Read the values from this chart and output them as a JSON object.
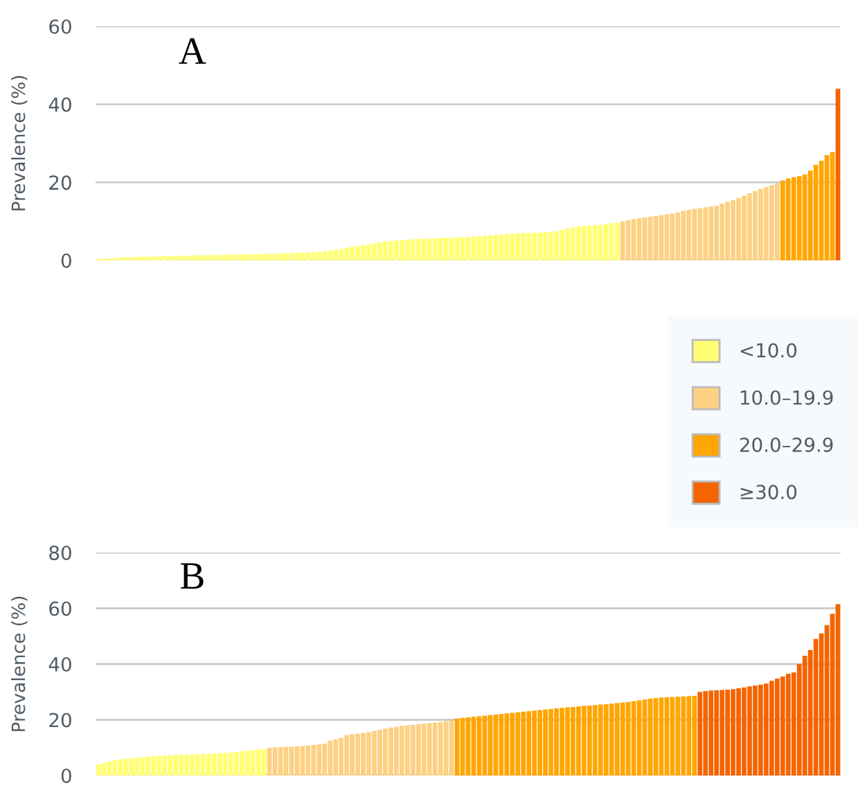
{
  "chart_data": [
    {
      "type": "bar",
      "title": "A",
      "ylabel": "Prevalence (%)",
      "ylim": [
        0,
        60
      ],
      "yticks": [
        0,
        20,
        40,
        60
      ],
      "grid": "y",
      "legend": "bottom right",
      "categories": [
        null,
        null,
        null,
        null,
        null,
        null,
        null,
        null,
        null,
        null,
        null,
        null,
        null,
        null,
        null,
        null,
        null,
        null,
        null,
        null,
        null,
        null,
        null,
        null,
        null,
        null,
        null,
        null,
        null,
        null,
        null,
        null,
        null,
        null,
        null,
        null,
        null,
        null,
        null,
        null,
        null,
        null,
        null,
        null,
        null,
        null,
        null,
        null,
        null,
        null,
        null,
        null,
        null,
        null,
        null,
        null,
        null,
        null,
        null,
        null,
        null,
        null,
        null,
        null,
        null,
        null,
        null,
        null,
        null,
        null,
        null,
        null,
        null,
        null,
        null,
        null,
        null,
        null,
        null,
        null,
        null,
        null,
        null,
        null,
        null,
        null,
        null,
        null,
        null,
        null,
        null,
        null,
        null,
        null,
        null,
        null,
        null,
        null,
        null,
        null,
        null,
        null,
        null,
        null,
        null,
        null,
        null,
        null,
        null,
        null,
        null,
        null,
        null,
        null,
        null,
        null,
        null,
        null,
        null,
        null,
        null,
        null,
        null,
        null,
        null,
        null,
        null,
        null,
        null,
        null,
        null,
        null,
        null,
        null,
        null
      ],
      "series": [
        {
          "name": "<10.0",
          "color": "#ffff73",
          "values": [
            0.3,
            0.4,
            0.5,
            0.6,
            0.7,
            0.8,
            0.8,
            0.9,
            0.9,
            1.0,
            1.0,
            1.0,
            1.1,
            1.1,
            1.1,
            1.2,
            1.2,
            1.2,
            1.3,
            1.3,
            1.3,
            1.4,
            1.4,
            1.4,
            1.5,
            1.5,
            1.5,
            1.6,
            1.6,
            1.6,
            1.7,
            1.7,
            1.7,
            1.8,
            1.8,
            1.9,
            1.9,
            2.0,
            2.0,
            2.1,
            2.2,
            2.3,
            2.5,
            2.7,
            2.9,
            3.2,
            3.5,
            3.7,
            3.9,
            4.1,
            4.3,
            4.6,
            4.9,
            5.0,
            5.1,
            5.2,
            5.3,
            5.4,
            5.5,
            5.5,
            5.6,
            5.7,
            5.7,
            5.8,
            5.8,
            5.9,
            5.9,
            6.0,
            6.1,
            6.2,
            6.3,
            6.4,
            6.5,
            6.6,
            6.7,
            6.8,
            6.9,
            7.0,
            7.0,
            7.1,
            7.1,
            7.2,
            7.3,
            7.5,
            7.8,
            8.2,
            8.5,
            8.7,
            8.8,
            8.9,
            9.0,
            9.1,
            9.3,
            9.5,
            9.7,
            null,
            null,
            null,
            null,
            null,
            null,
            null,
            null,
            null,
            null,
            null,
            null,
            null,
            null,
            null,
            null,
            null,
            null,
            null,
            null,
            null,
            null,
            null,
            null,
            null,
            null,
            null,
            null,
            null,
            null,
            null,
            null,
            null,
            null,
            null,
            null,
            null,
            null,
            null,
            null
          ]
        },
        {
          "name": "10.0–19.9",
          "color": "#fdd082",
          "values": [
            null,
            null,
            null,
            null,
            null,
            null,
            null,
            null,
            null,
            null,
            null,
            null,
            null,
            null,
            null,
            null,
            null,
            null,
            null,
            null,
            null,
            null,
            null,
            null,
            null,
            null,
            null,
            null,
            null,
            null,
            null,
            null,
            null,
            null,
            null,
            null,
            null,
            null,
            null,
            null,
            null,
            null,
            null,
            null,
            null,
            null,
            null,
            null,
            null,
            null,
            null,
            null,
            null,
            null,
            null,
            null,
            null,
            null,
            null,
            null,
            null,
            null,
            null,
            null,
            null,
            null,
            null,
            null,
            null,
            null,
            null,
            null,
            null,
            null,
            null,
            null,
            null,
            null,
            null,
            null,
            null,
            null,
            null,
            null,
            null,
            null,
            null,
            null,
            null,
            null,
            null,
            null,
            null,
            null,
            null,
            10.0,
            10.3,
            10.6,
            10.8,
            11.0,
            11.2,
            11.4,
            11.6,
            11.8,
            12.0,
            12.3,
            12.7,
            13.0,
            13.2,
            13.4,
            13.6,
            13.8,
            14.0,
            14.5,
            15.0,
            15.5,
            16.0,
            16.6,
            17.2,
            17.8,
            18.3,
            18.8,
            19.3,
            19.7,
            null,
            null,
            null,
            null,
            null,
            null,
            null,
            null,
            null,
            null,
            null
          ]
        },
        {
          "name": "20.0–29.9",
          "color": "#ffa600",
          "values": [
            null,
            null,
            null,
            null,
            null,
            null,
            null,
            null,
            null,
            null,
            null,
            null,
            null,
            null,
            null,
            null,
            null,
            null,
            null,
            null,
            null,
            null,
            null,
            null,
            null,
            null,
            null,
            null,
            null,
            null,
            null,
            null,
            null,
            null,
            null,
            null,
            null,
            null,
            null,
            null,
            null,
            null,
            null,
            null,
            null,
            null,
            null,
            null,
            null,
            null,
            null,
            null,
            null,
            null,
            null,
            null,
            null,
            null,
            null,
            null,
            null,
            null,
            null,
            null,
            null,
            null,
            null,
            null,
            null,
            null,
            null,
            null,
            null,
            null,
            null,
            null,
            null,
            null,
            null,
            null,
            null,
            null,
            null,
            null,
            null,
            null,
            null,
            null,
            null,
            null,
            null,
            null,
            null,
            null,
            null,
            null,
            null,
            null,
            null,
            null,
            null,
            null,
            null,
            null,
            null,
            null,
            null,
            null,
            null,
            null,
            null,
            null,
            null,
            null,
            null,
            null,
            null,
            null,
            null,
            null,
            null,
            null,
            null,
            null,
            20.5,
            21.0,
            21.3,
            21.6,
            22.0,
            23.0,
            24.5,
            25.5,
            27.0,
            27.8,
            null
          ]
        },
        {
          "name": "≥30.0",
          "color": "#f46502",
          "values": [
            null,
            null,
            null,
            null,
            null,
            null,
            null,
            null,
            null,
            null,
            null,
            null,
            null,
            null,
            null,
            null,
            null,
            null,
            null,
            null,
            null,
            null,
            null,
            null,
            null,
            null,
            null,
            null,
            null,
            null,
            null,
            null,
            null,
            null,
            null,
            null,
            null,
            null,
            null,
            null,
            null,
            null,
            null,
            null,
            null,
            null,
            null,
            null,
            null,
            null,
            null,
            null,
            null,
            null,
            null,
            null,
            null,
            null,
            null,
            null,
            null,
            null,
            null,
            null,
            null,
            null,
            null,
            null,
            null,
            null,
            null,
            null,
            null,
            null,
            null,
            null,
            null,
            null,
            null,
            null,
            null,
            null,
            null,
            null,
            null,
            null,
            null,
            null,
            null,
            null,
            null,
            null,
            null,
            null,
            null,
            null,
            null,
            null,
            null,
            null,
            null,
            null,
            null,
            null,
            null,
            null,
            null,
            null,
            null,
            null,
            null,
            null,
            null,
            null,
            null,
            null,
            null,
            null,
            null,
            null,
            null,
            null,
            null,
            null,
            null,
            null,
            null,
            null,
            null,
            null,
            null,
            null,
            null,
            null,
            44.0
          ]
        }
      ]
    },
    {
      "type": "bar",
      "title": "B",
      "ylabel": "Prevalence (%)",
      "ylim": [
        0,
        80
      ],
      "yticks": [
        0,
        20,
        40,
        60,
        80
      ],
      "grid": "y",
      "categories": [
        null,
        null,
        null,
        null,
        null,
        null,
        null,
        null,
        null,
        null,
        null,
        null,
        null,
        null,
        null,
        null,
        null,
        null,
        null,
        null,
        null,
        null,
        null,
        null,
        null,
        null,
        null,
        null,
        null,
        null,
        null,
        null,
        null,
        null,
        null,
        null,
        null,
        null,
        null,
        null,
        null,
        null,
        null,
        null,
        null,
        null,
        null,
        null,
        null,
        null,
        null,
        null,
        null,
        null,
        null,
        null,
        null,
        null,
        null,
        null,
        null,
        null,
        null,
        null,
        null,
        null,
        null,
        null,
        null,
        null,
        null,
        null,
        null,
        null,
        null,
        null,
        null,
        null,
        null,
        null,
        null,
        null,
        null,
        null,
        null,
        null,
        null,
        null,
        null,
        null,
        null,
        null,
        null,
        null,
        null,
        null,
        null,
        null,
        null,
        null,
        null,
        null,
        null,
        null,
        null,
        null,
        null,
        null,
        null,
        null,
        null,
        null,
        null,
        null,
        null,
        null,
        null,
        null,
        null,
        null,
        null,
        null,
        null,
        null,
        null,
        null,
        null,
        null,
        null,
        null,
        null,
        null,
        null,
        null,
        null
      ],
      "series": [
        {
          "color": "#ffff73",
          "values": [
            4.0,
            4.5,
            5.0,
            5.5,
            5.8,
            6.0,
            6.2,
            6.4,
            6.6,
            6.8,
            7.0,
            7.1,
            7.2,
            7.3,
            7.4,
            7.5,
            7.5,
            7.6,
            7.6,
            7.7,
            7.8,
            7.9,
            8.0,
            8.1,
            8.3,
            8.5,
            8.7,
            8.9,
            9.1,
            9.3,
            9.6,
            null,
            null,
            null,
            null,
            null,
            null,
            null,
            null,
            null,
            null,
            null,
            null,
            null,
            null,
            null,
            null,
            null,
            null,
            null,
            null,
            null,
            null,
            null,
            null,
            null,
            null,
            null,
            null,
            null,
            null,
            null,
            null,
            null,
            null,
            null,
            null,
            null,
            null,
            null,
            null,
            null,
            null,
            null,
            null,
            null,
            null,
            null,
            null,
            null,
            null,
            null,
            null,
            null,
            null,
            null,
            null,
            null,
            null,
            null,
            null,
            null,
            null,
            null,
            null,
            null,
            null,
            null,
            null,
            null,
            null,
            null,
            null,
            null,
            null,
            null,
            null,
            null,
            null,
            null,
            null,
            null,
            null,
            null,
            null,
            null,
            null,
            null,
            null,
            null,
            null,
            null,
            null,
            null,
            null,
            null,
            null,
            null,
            null,
            null,
            null,
            null,
            null,
            null,
            null
          ]
        },
        {
          "color": "#fdd082",
          "values": [
            null,
            null,
            null,
            null,
            null,
            null,
            null,
            null,
            null,
            null,
            null,
            null,
            null,
            null,
            null,
            null,
            null,
            null,
            null,
            null,
            null,
            null,
            null,
            null,
            null,
            null,
            null,
            null,
            null,
            null,
            null,
            10.0,
            10.1,
            10.2,
            10.3,
            10.4,
            10.5,
            10.6,
            10.8,
            11.0,
            11.2,
            11.5,
            12.5,
            13.0,
            13.5,
            14.5,
            14.8,
            15.0,
            15.3,
            15.6,
            16.0,
            16.4,
            16.8,
            17.2,
            17.5,
            17.8,
            18.0,
            18.2,
            18.4,
            18.6,
            18.8,
            19.0,
            19.2,
            19.5,
            19.8,
            null,
            null,
            null,
            null,
            null,
            null,
            null,
            null,
            null,
            null,
            null,
            null,
            null,
            null,
            null,
            null,
            null,
            null,
            null,
            null,
            null,
            null,
            null,
            null,
            null,
            null,
            null,
            null,
            null,
            null,
            null,
            null,
            null,
            null,
            null,
            null,
            null,
            null,
            null,
            null,
            null,
            null,
            null,
            null,
            null,
            null,
            null,
            null,
            null,
            null,
            null,
            null,
            null,
            null,
            null,
            null,
            null,
            null,
            null,
            null,
            null,
            null,
            null,
            null,
            null,
            null,
            null,
            null,
            null,
            null
          ]
        },
        {
          "color": "#ffa600",
          "values": [
            null,
            null,
            null,
            null,
            null,
            null,
            null,
            null,
            null,
            null,
            null,
            null,
            null,
            null,
            null,
            null,
            null,
            null,
            null,
            null,
            null,
            null,
            null,
            null,
            null,
            null,
            null,
            null,
            null,
            null,
            null,
            null,
            null,
            null,
            null,
            null,
            null,
            null,
            null,
            null,
            null,
            null,
            null,
            null,
            null,
            null,
            null,
            null,
            null,
            null,
            null,
            null,
            null,
            null,
            null,
            null,
            null,
            null,
            null,
            null,
            null,
            null,
            null,
            null,
            null,
            20.5,
            20.7,
            20.9,
            21.1,
            21.3,
            21.5,
            21.7,
            21.9,
            22.1,
            22.3,
            22.5,
            22.7,
            22.9,
            23.1,
            23.3,
            23.5,
            23.7,
            23.9,
            24.1,
            24.3,
            24.5,
            24.6,
            24.8,
            25.0,
            25.1,
            25.3,
            25.5,
            25.6,
            25.8,
            26.0,
            26.2,
            26.4,
            26.7,
            27.0,
            27.3,
            27.6,
            27.8,
            28.0,
            28.1,
            28.2,
            28.3,
            28.4,
            28.5,
            28.6,
            null,
            null,
            null,
            null,
            null,
            null,
            null,
            null,
            null,
            null,
            null,
            null,
            null,
            null,
            null,
            null,
            null,
            null,
            null,
            null,
            null,
            null,
            null,
            null,
            null,
            null
          ]
        },
        {
          "color": "#f46502",
          "values": [
            null,
            null,
            null,
            null,
            null,
            null,
            null,
            null,
            null,
            null,
            null,
            null,
            null,
            null,
            null,
            null,
            null,
            null,
            null,
            null,
            null,
            null,
            null,
            null,
            null,
            null,
            null,
            null,
            null,
            null,
            null,
            null,
            null,
            null,
            null,
            null,
            null,
            null,
            null,
            null,
            null,
            null,
            null,
            null,
            null,
            null,
            null,
            null,
            null,
            null,
            null,
            null,
            null,
            null,
            null,
            null,
            null,
            null,
            null,
            null,
            null,
            null,
            null,
            null,
            null,
            null,
            null,
            null,
            null,
            null,
            null,
            null,
            null,
            null,
            null,
            null,
            null,
            null,
            null,
            null,
            null,
            null,
            null,
            null,
            null,
            null,
            null,
            null,
            null,
            null,
            null,
            null,
            null,
            null,
            null,
            null,
            null,
            null,
            null,
            null,
            null,
            null,
            null,
            null,
            null,
            null,
            null,
            null,
            null,
            30.0,
            30.3,
            30.5,
            30.6,
            30.7,
            30.8,
            31.0,
            31.3,
            31.6,
            32.0,
            32.3,
            32.6,
            33.0,
            34.0,
            34.8,
            35.5,
            36.5,
            37.0,
            40.0,
            43.0,
            45.0,
            49.0,
            51.0,
            54.0,
            58.0,
            61.5
          ]
        }
      ]
    }
  ]
}
